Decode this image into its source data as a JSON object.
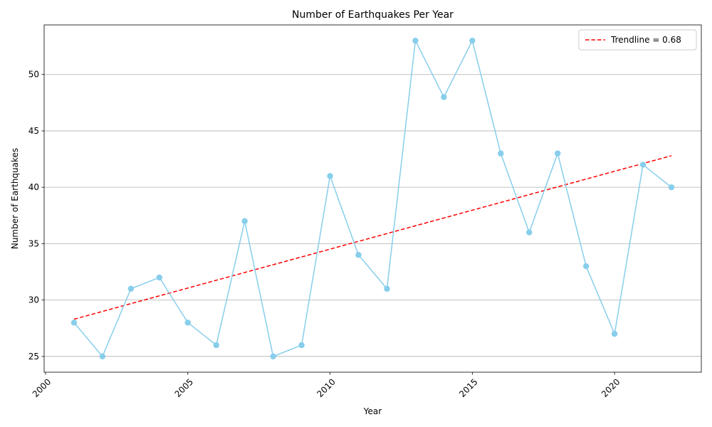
{
  "chart_data": {
    "type": "line",
    "title": "Number of Earthquakes Per Year",
    "xlabel": "Year",
    "ylabel": "Number of Earthquakes",
    "xlim": [
      1999.95,
      2023.05
    ],
    "ylim": [
      23.6,
      54.4
    ],
    "xticks": [
      2000,
      2005,
      2010,
      2015,
      2020
    ],
    "yticks": [
      25,
      30,
      35,
      40,
      45,
      50
    ],
    "grid": "y-axis only",
    "legend_position": "top-right",
    "x": [
      2001,
      2002,
      2003,
      2004,
      2005,
      2006,
      2007,
      2008,
      2009,
      2010,
      2011,
      2012,
      2013,
      2014,
      2015,
      2016,
      2017,
      2018,
      2019,
      2020,
      2021,
      2022
    ],
    "series": [
      {
        "values": [
          28,
          25,
          31,
          32,
          28,
          26,
          37,
          25,
          26,
          41,
          34,
          31,
          53,
          48,
          53,
          43,
          36,
          43,
          33,
          27,
          42,
          40
        ],
        "color": "#87CEEB",
        "marker": "circle",
        "line_style": "solid"
      }
    ],
    "trendline": {
      "name": "Trendline = 0.68",
      "slope": 0.68,
      "x": [
        2001,
        2022
      ],
      "y": [
        28.3,
        42.8
      ],
      "color": "#FF0000",
      "line_style": "dashed"
    }
  }
}
